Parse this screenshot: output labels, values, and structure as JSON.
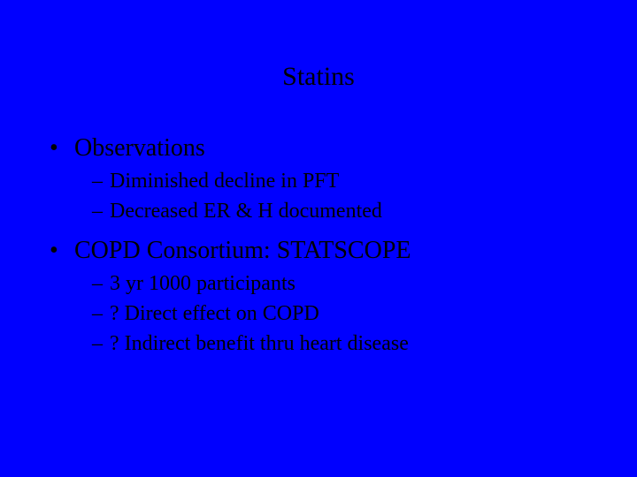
{
  "slide": {
    "background_color": "#0000ff",
    "text_color": "#000000",
    "font_family": "Times New Roman",
    "title": "Statins",
    "title_fontsize": 30,
    "level1_fontsize": 28,
    "level2_fontsize": 24,
    "bullets": [
      {
        "text": "Observations",
        "children": [
          {
            "text": "Diminished decline in PFT"
          },
          {
            "text": "Decreased ER & H documented"
          }
        ]
      },
      {
        "text": "COPD Consortium:  STATSCOPE",
        "children": [
          {
            "text": "3 yr  1000 participants"
          },
          {
            "text": "? Direct effect on COPD"
          },
          {
            "text": "? Indirect benefit thru heart disease"
          }
        ]
      }
    ]
  }
}
